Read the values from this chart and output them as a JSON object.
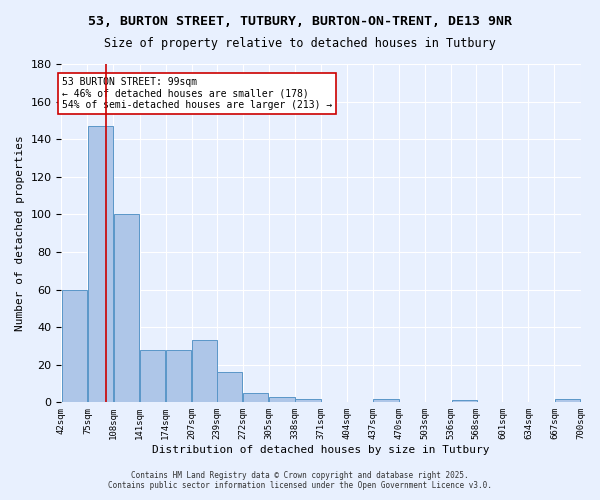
{
  "title1": "53, BURTON STREET, TUTBURY, BURTON-ON-TRENT, DE13 9NR",
  "title2": "Size of property relative to detached houses in Tutbury",
  "xlabel": "Distribution of detached houses by size in Tutbury",
  "ylabel": "Number of detached properties",
  "bins": [
    42,
    75,
    108,
    141,
    174,
    207,
    239,
    272,
    305,
    338,
    371,
    404,
    437,
    470,
    503,
    536,
    568,
    601,
    634,
    667,
    700
  ],
  "bin_labels": [
    "42sqm",
    "75sqm",
    "108sqm",
    "141sqm",
    "174sqm",
    "207sqm",
    "239sqm",
    "272sqm",
    "305sqm",
    "338sqm",
    "371sqm",
    "404sqm",
    "437sqm",
    "470sqm",
    "503sqm",
    "536sqm",
    "568sqm",
    "601sqm",
    "634sqm",
    "667sqm",
    "700sqm"
  ],
  "counts": [
    60,
    147,
    100,
    28,
    28,
    33,
    16,
    5,
    3,
    2,
    0,
    0,
    2,
    0,
    0,
    1,
    0,
    0,
    0,
    2
  ],
  "bar_color": "#aec6e8",
  "bar_edge_color": "#5a96c8",
  "bg_color": "#e8f0fe",
  "grid_color": "#ffffff",
  "vline_x": 99,
  "vline_color": "#cc0000",
  "annotation_text": "53 BURTON STREET: 99sqm\n← 46% of detached houses are smaller (178)\n54% of semi-detached houses are larger (213) →",
  "annotation_box_color": "#ffffff",
  "annotation_box_edge": "#cc0000",
  "footer_line1": "Contains HM Land Registry data © Crown copyright and database right 2025.",
  "footer_line2": "Contains public sector information licensed under the Open Government Licence v3.0.",
  "ylim": [
    0,
    180
  ],
  "yticks": [
    0,
    20,
    40,
    60,
    80,
    100,
    120,
    140,
    160,
    180
  ]
}
